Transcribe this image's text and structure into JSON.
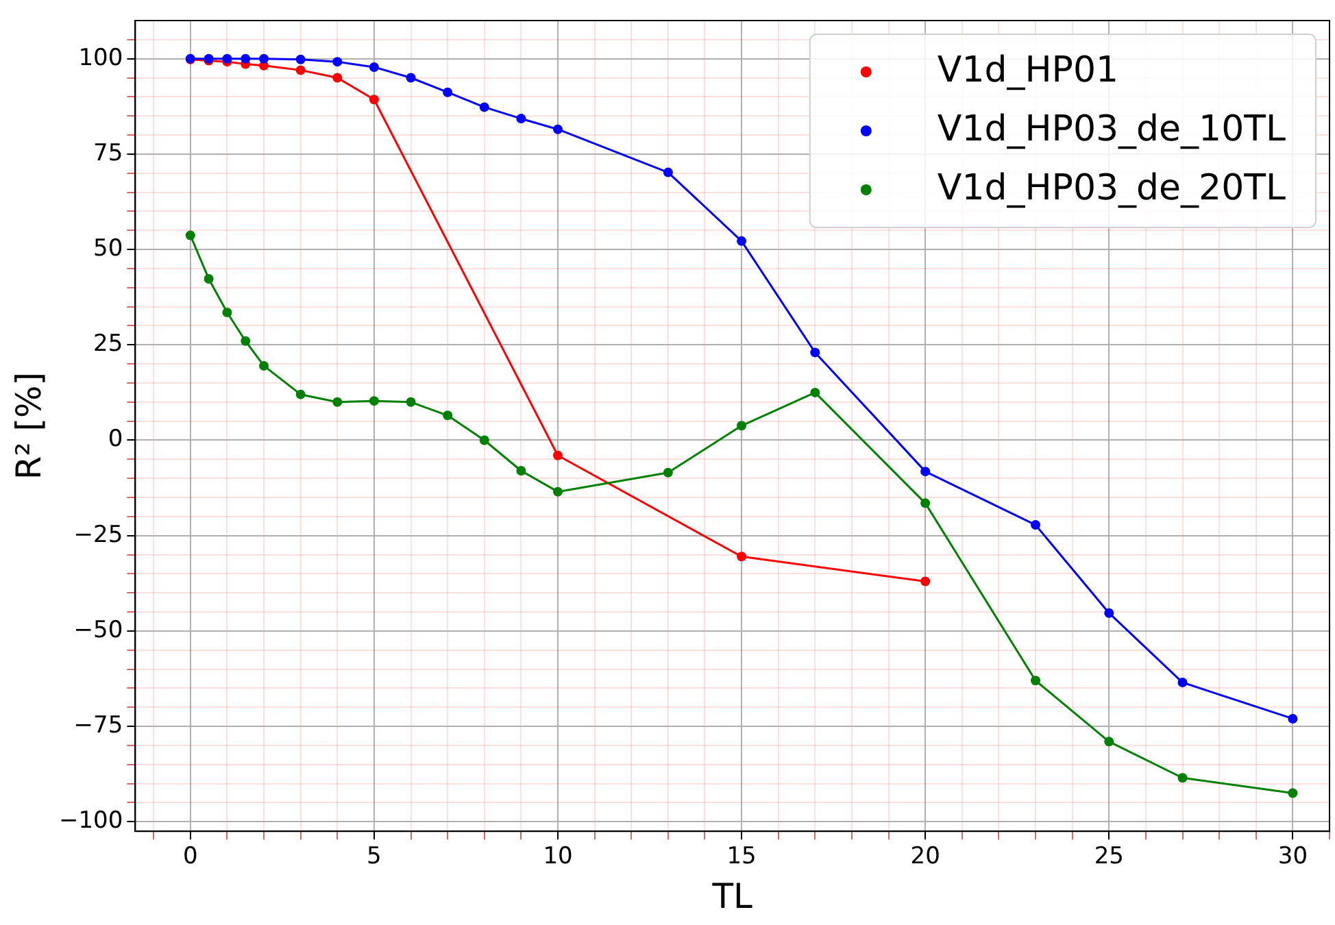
{
  "chart_data": {
    "type": "line",
    "xlabel": "TL",
    "ylabel": "R² [%]",
    "marker": "circle",
    "line_style": "solid",
    "grid": true,
    "legend": "top right",
    "xlim": [
      -1.5,
      31
    ],
    "ylim": [
      -102.5,
      110
    ],
    "xticks": [
      {
        "value": -1,
        "label": null
      },
      0,
      {
        "value": 1,
        "label": null
      },
      {
        "value": 2,
        "label": null
      },
      {
        "value": 3,
        "label": null
      },
      {
        "value": 4,
        "label": null
      },
      5,
      {
        "value": 6,
        "label": null
      },
      {
        "value": 7,
        "label": null
      },
      {
        "value": 8,
        "label": null
      },
      {
        "value": 9,
        "label": null
      },
      10,
      {
        "value": 11,
        "label": null
      },
      {
        "value": 12,
        "label": null
      },
      {
        "value": 13,
        "label": null
      },
      {
        "value": 14,
        "label": null
      },
      15,
      {
        "value": 16,
        "label": null
      },
      {
        "value": 17,
        "label": null
      },
      {
        "value": 18,
        "label": null
      },
      {
        "value": 19,
        "label": null
      },
      20,
      {
        "value": 21,
        "label": null
      },
      {
        "value": 22,
        "label": null
      },
      {
        "value": 23,
        "label": null
      },
      {
        "value": 24,
        "label": null
      },
      25,
      {
        "value": 26,
        "label": null
      },
      {
        "value": 27,
        "label": null
      },
      {
        "value": 28,
        "label": null
      },
      {
        "value": 29,
        "label": null
      },
      30,
      {
        "value": 31,
        "label": null
      }
    ],
    "yticks": [
      -100,
      {
        "value": -95,
        "label": null
      },
      {
        "value": -90,
        "label": null
      },
      {
        "value": -85,
        "label": null
      },
      {
        "value": -80,
        "label": null
      },
      -75,
      {
        "value": -70,
        "label": null
      },
      {
        "value": -65,
        "label": null
      },
      {
        "value": -60,
        "label": null
      },
      {
        "value": -55,
        "label": null
      },
      -50,
      {
        "value": -45,
        "label": null
      },
      {
        "value": -40,
        "label": null
      },
      {
        "value": -35,
        "label": null
      },
      {
        "value": -30,
        "label": null
      },
      -25,
      {
        "value": -20,
        "label": null
      },
      {
        "value": -15,
        "label": null
      },
      {
        "value": -10,
        "label": null
      },
      {
        "value": -5,
        "label": null
      },
      0,
      {
        "value": 5,
        "label": null
      },
      {
        "value": 10,
        "label": null
      },
      {
        "value": 15,
        "label": null
      },
      {
        "value": 20,
        "label": null
      },
      25,
      {
        "value": 30,
        "label": null
      },
      {
        "value": 35,
        "label": null
      },
      {
        "value": 40,
        "label": null
      },
      {
        "value": 45,
        "label": null
      },
      50,
      {
        "value": 55,
        "label": null
      },
      {
        "value": 60,
        "label": null
      },
      {
        "value": 65,
        "label": null
      },
      {
        "value": 70,
        "label": null
      },
      75,
      {
        "value": 80,
        "label": null
      },
      {
        "value": 85,
        "label": null
      },
      {
        "value": 90,
        "label": null
      },
      {
        "value": 95,
        "label": null
      },
      100,
      {
        "value": 105,
        "label": null
      }
    ],
    "series": [
      {
        "name": "V1d_HP01",
        "color": "#ff0000",
        "x": [
          0,
          0.5,
          1,
          1.5,
          2,
          3,
          4,
          5,
          10,
          15,
          20
        ],
        "values": [
          99.8,
          99.5,
          99.2,
          98.6,
          98.2,
          97,
          95,
          89.3,
          -4,
          -30.5,
          -37
        ]
      },
      {
        "name": "V1d_HP03_de_10TL",
        "color": "#0000ff",
        "x": [
          0,
          0.5,
          1,
          1.5,
          2,
          3,
          4,
          5,
          6,
          7,
          8,
          9,
          10,
          13,
          15,
          17,
          20,
          23,
          25,
          27,
          30
        ],
        "values": [
          100,
          100,
          100,
          100,
          100,
          99.8,
          99.2,
          97.8,
          95,
          91.2,
          87.3,
          84.3,
          81.5,
          70.2,
          52.2,
          23,
          -8.2,
          -22.2,
          -45.3,
          -63.5,
          -73
        ]
      },
      {
        "name": "V1d_HP03_de_20TL",
        "color": "#008000",
        "x": [
          0,
          0.5,
          1,
          1.5,
          2,
          3,
          4,
          5,
          6,
          7,
          8,
          9,
          10,
          13,
          15,
          17,
          20,
          23,
          25,
          27,
          30
        ],
        "values": [
          53.7,
          42.3,
          33.5,
          26,
          19.5,
          12,
          10,
          10.3,
          10,
          6.5,
          0,
          -8,
          -13.5,
          -8.5,
          3.8,
          12.5,
          -16.5,
          -63,
          -79,
          -88.5,
          -92.5
        ]
      }
    ]
  }
}
